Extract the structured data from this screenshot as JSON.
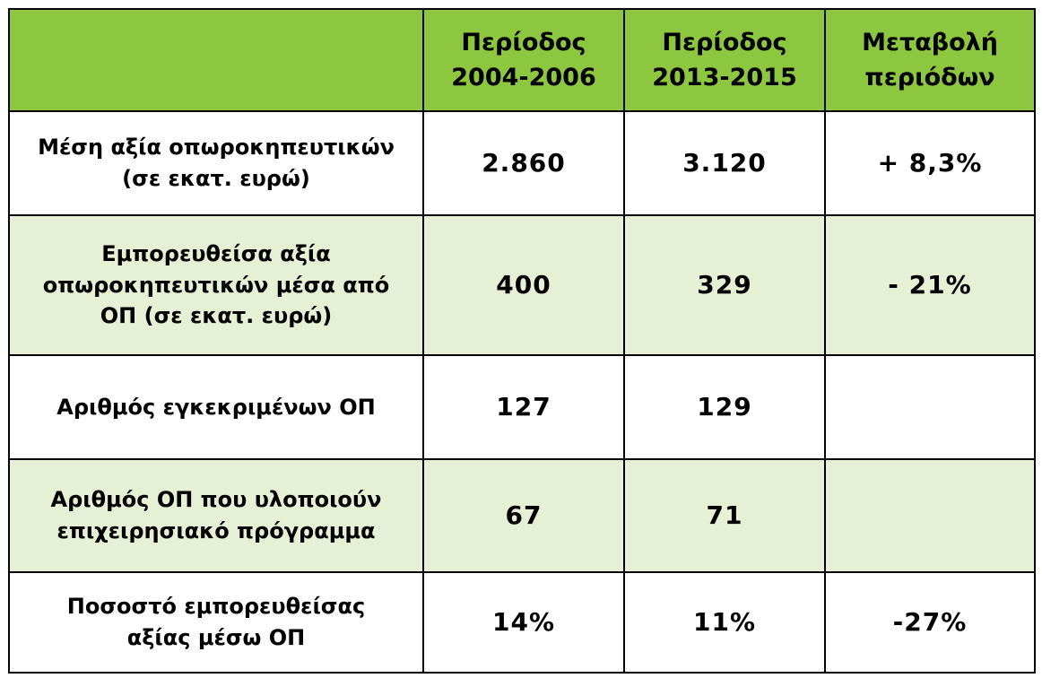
{
  "table": {
    "header": {
      "corner": "",
      "col1_line1": "Περίοδος",
      "col1_line2": "2004-2006",
      "col2_line1": "Περίοδος",
      "col2_line2": "2013-2015",
      "col3_line1": "Μεταβολή",
      "col3_line2": "περιόδων"
    },
    "rows": [
      {
        "label_lines": [
          "Μέση αξία οπωροκηπευτικών",
          "(σε εκατ. ευρώ)"
        ],
        "p2004": "2.860",
        "p2013": "3.120",
        "change": "+ 8,3%"
      },
      {
        "label_lines": [
          "Εμπορευθείσα αξία",
          "οπωροκηπευτικών μέσα από",
          "ΟΠ (σε εκατ. ευρώ)"
        ],
        "p2004": "400",
        "p2013": "329",
        "change": "- 21%"
      },
      {
        "label_lines": [
          "Αριθμός εγκεκριμένων ΟΠ"
        ],
        "p2004": "127",
        "p2013": "129",
        "change": ""
      },
      {
        "label_lines": [
          "Αριθμός ΟΠ που υλοποιούν",
          "επιχειρησιακό πρόγραμμα"
        ],
        "p2004": "67",
        "p2013": "71",
        "change": ""
      },
      {
        "label_lines": [
          "Ποσοστό εμπορευθείσας",
          "αξίας μέσω ΟΠ"
        ],
        "p2004": "14%",
        "p2013": "11%",
        "change": "-27%"
      }
    ]
  },
  "colors": {
    "header_bg": "#8dc63f",
    "alt_row_bg": "#e6f0d5",
    "border": "#000000"
  }
}
